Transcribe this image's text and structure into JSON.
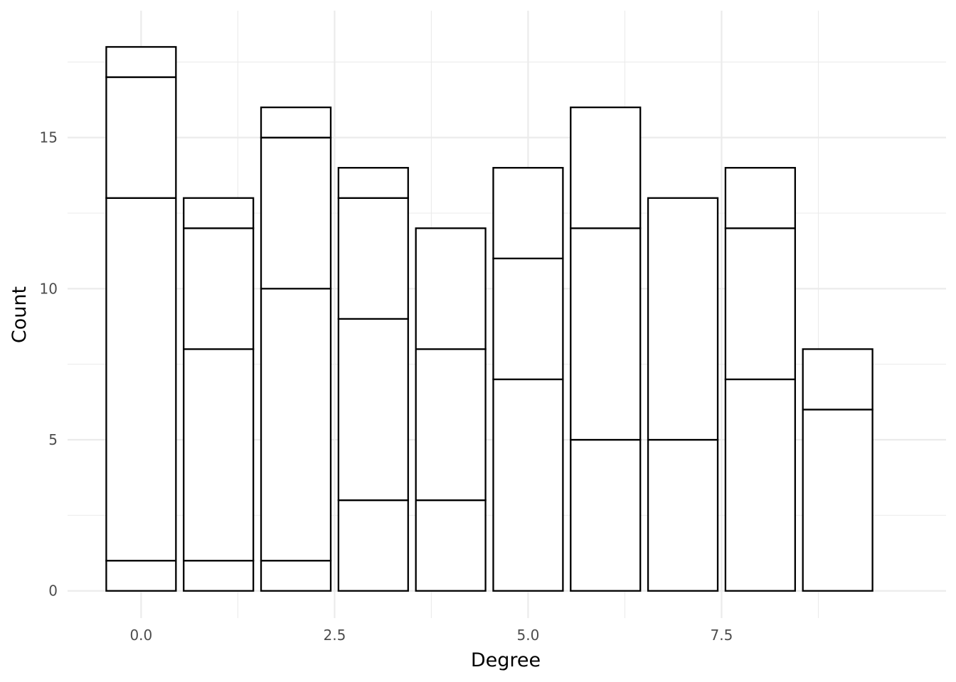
{
  "chart_data": {
    "type": "bar",
    "stacked": true,
    "xlabel": "Degree",
    "ylabel": "Count",
    "xlim": [
      -0.95,
      10.4
    ],
    "ylim": [
      -0.9,
      19.2
    ],
    "x_ticks": [
      "0.0",
      "2.5",
      "5.0",
      "7.5"
    ],
    "x_tick_values": [
      0,
      2.5,
      5,
      7.5
    ],
    "y_ticks": [
      "0",
      "5",
      "10",
      "15"
    ],
    "y_tick_values": [
      0,
      5,
      10,
      15
    ],
    "grid": true,
    "bar_fill": "#ffffff",
    "bar_stroke": "#000000",
    "grid_color": "#ebebeb",
    "bars": [
      {
        "x": 0,
        "boundaries": [
          0,
          1,
          13,
          17,
          18
        ]
      },
      {
        "x": 1,
        "boundaries": [
          0,
          1,
          8,
          12,
          13
        ]
      },
      {
        "x": 2,
        "boundaries": [
          0,
          1,
          10,
          15,
          16
        ]
      },
      {
        "x": 3,
        "boundaries": [
          0,
          3,
          9,
          13,
          14
        ]
      },
      {
        "x": 4,
        "boundaries": [
          0,
          3,
          8,
          12
        ]
      },
      {
        "x": 5,
        "boundaries": [
          0,
          7,
          11,
          14
        ]
      },
      {
        "x": 6,
        "boundaries": [
          0,
          5,
          12,
          16
        ]
      },
      {
        "x": 7,
        "boundaries": [
          0,
          5,
          13
        ]
      },
      {
        "x": 8,
        "boundaries": [
          0,
          7,
          12,
          14
        ]
      },
      {
        "x": 9,
        "boundaries": [
          0,
          6,
          8
        ]
      }
    ]
  }
}
